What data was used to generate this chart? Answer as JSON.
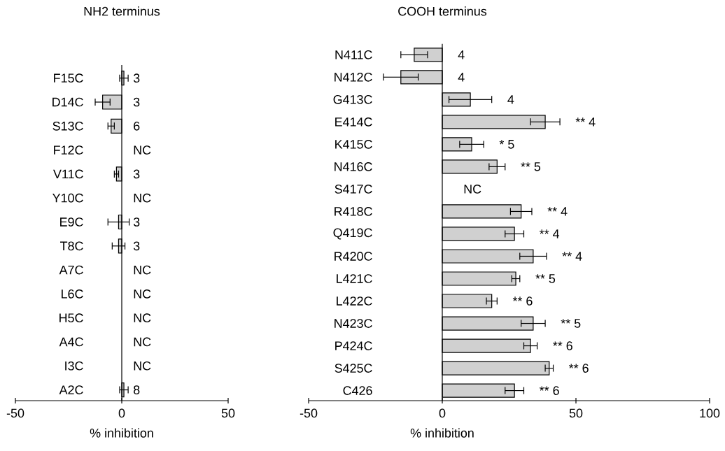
{
  "chart_data": [
    {
      "type": "bar",
      "orientation": "horizontal",
      "title": "NH2 terminus",
      "xlabel": "% inhibition",
      "categories": [
        "F15C",
        "D14C",
        "S13C",
        "F12C",
        "V11C",
        "Y10C",
        "E9C",
        "T8C",
        "A7C",
        "L6C",
        "H5C",
        "A4C",
        "I3C",
        "A2C"
      ],
      "values": [
        1,
        -9,
        -5,
        null,
        -2.5,
        null,
        -1.5,
        -1.5,
        null,
        null,
        null,
        null,
        null,
        1
      ],
      "errors": [
        2,
        3.5,
        1.5,
        null,
        1,
        null,
        5,
        3,
        null,
        null,
        null,
        null,
        null,
        2
      ],
      "annotations": [
        "3",
        "3",
        "6",
        "NC",
        "3",
        "NC",
        "3",
        "3",
        "NC",
        "NC",
        "NC",
        "NC",
        "NC",
        "8"
      ],
      "color": "#d0d0d0",
      "xlim": [
        -50,
        50
      ],
      "xticks": [
        -50,
        0,
        50
      ]
    },
    {
      "type": "bar",
      "orientation": "horizontal",
      "title": "COOH terminus",
      "xlabel": "% inhibition",
      "categories": [
        "N411C",
        "N412C",
        "G413C",
        "E414C",
        "K415C",
        "N416C",
        "S417C",
        "R418C",
        "Q419C",
        "R420C",
        "L421C",
        "L422C",
        "N423C",
        "P424C",
        "S425C",
        "C426"
      ],
      "values": [
        -10.5,
        -15.5,
        10.5,
        38.5,
        11,
        20.5,
        null,
        29.5,
        27,
        34,
        27.5,
        18.5,
        34,
        33,
        40,
        27
      ],
      "errors": [
        5,
        6.5,
        8,
        5.5,
        4.5,
        3,
        null,
        4,
        3.5,
        5,
        1.5,
        2,
        4.5,
        2.5,
        1.5,
        3.5
      ],
      "annotations": [
        "4",
        "4",
        "4",
        "** 4",
        "* 5",
        "** 5",
        "NC",
        "** 4",
        "** 4",
        "** 4",
        "** 5",
        "** 6",
        "** 5",
        "** 6",
        "** 6",
        "** 6"
      ],
      "color": "#d0d0d0",
      "xlim": [
        -50,
        100
      ],
      "xticks": [
        -50,
        0,
        50,
        100
      ]
    }
  ]
}
